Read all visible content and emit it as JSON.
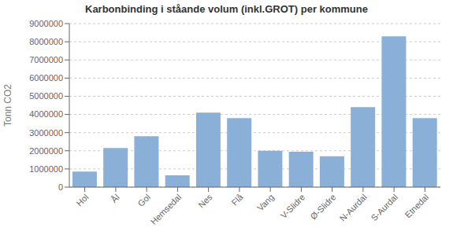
{
  "chart_data": {
    "type": "bar",
    "title": "Karbonbinding i ståande volum (inkl.GROT) per kommune",
    "ylabel": "Tonn CO2",
    "categories": [
      "Hol",
      "Ål",
      "Gol",
      "Hemsedal",
      "Nes",
      "Flå",
      "Vang",
      "V-Slidre",
      "Ø-Slidre",
      "N-Aurdal",
      "S-Aurdal",
      "Etnedal"
    ],
    "values": [
      850000,
      2150000,
      2800000,
      650000,
      4100000,
      3800000,
      2000000,
      1950000,
      1700000,
      4400000,
      8300000,
      3800000
    ],
    "color": "#8ab0d8",
    "ylim": [
      0,
      9000000
    ],
    "yticks": [
      0,
      1000000,
      2000000,
      3000000,
      4000000,
      5000000,
      6000000,
      7000000,
      8000000,
      9000000
    ],
    "grid": true
  }
}
